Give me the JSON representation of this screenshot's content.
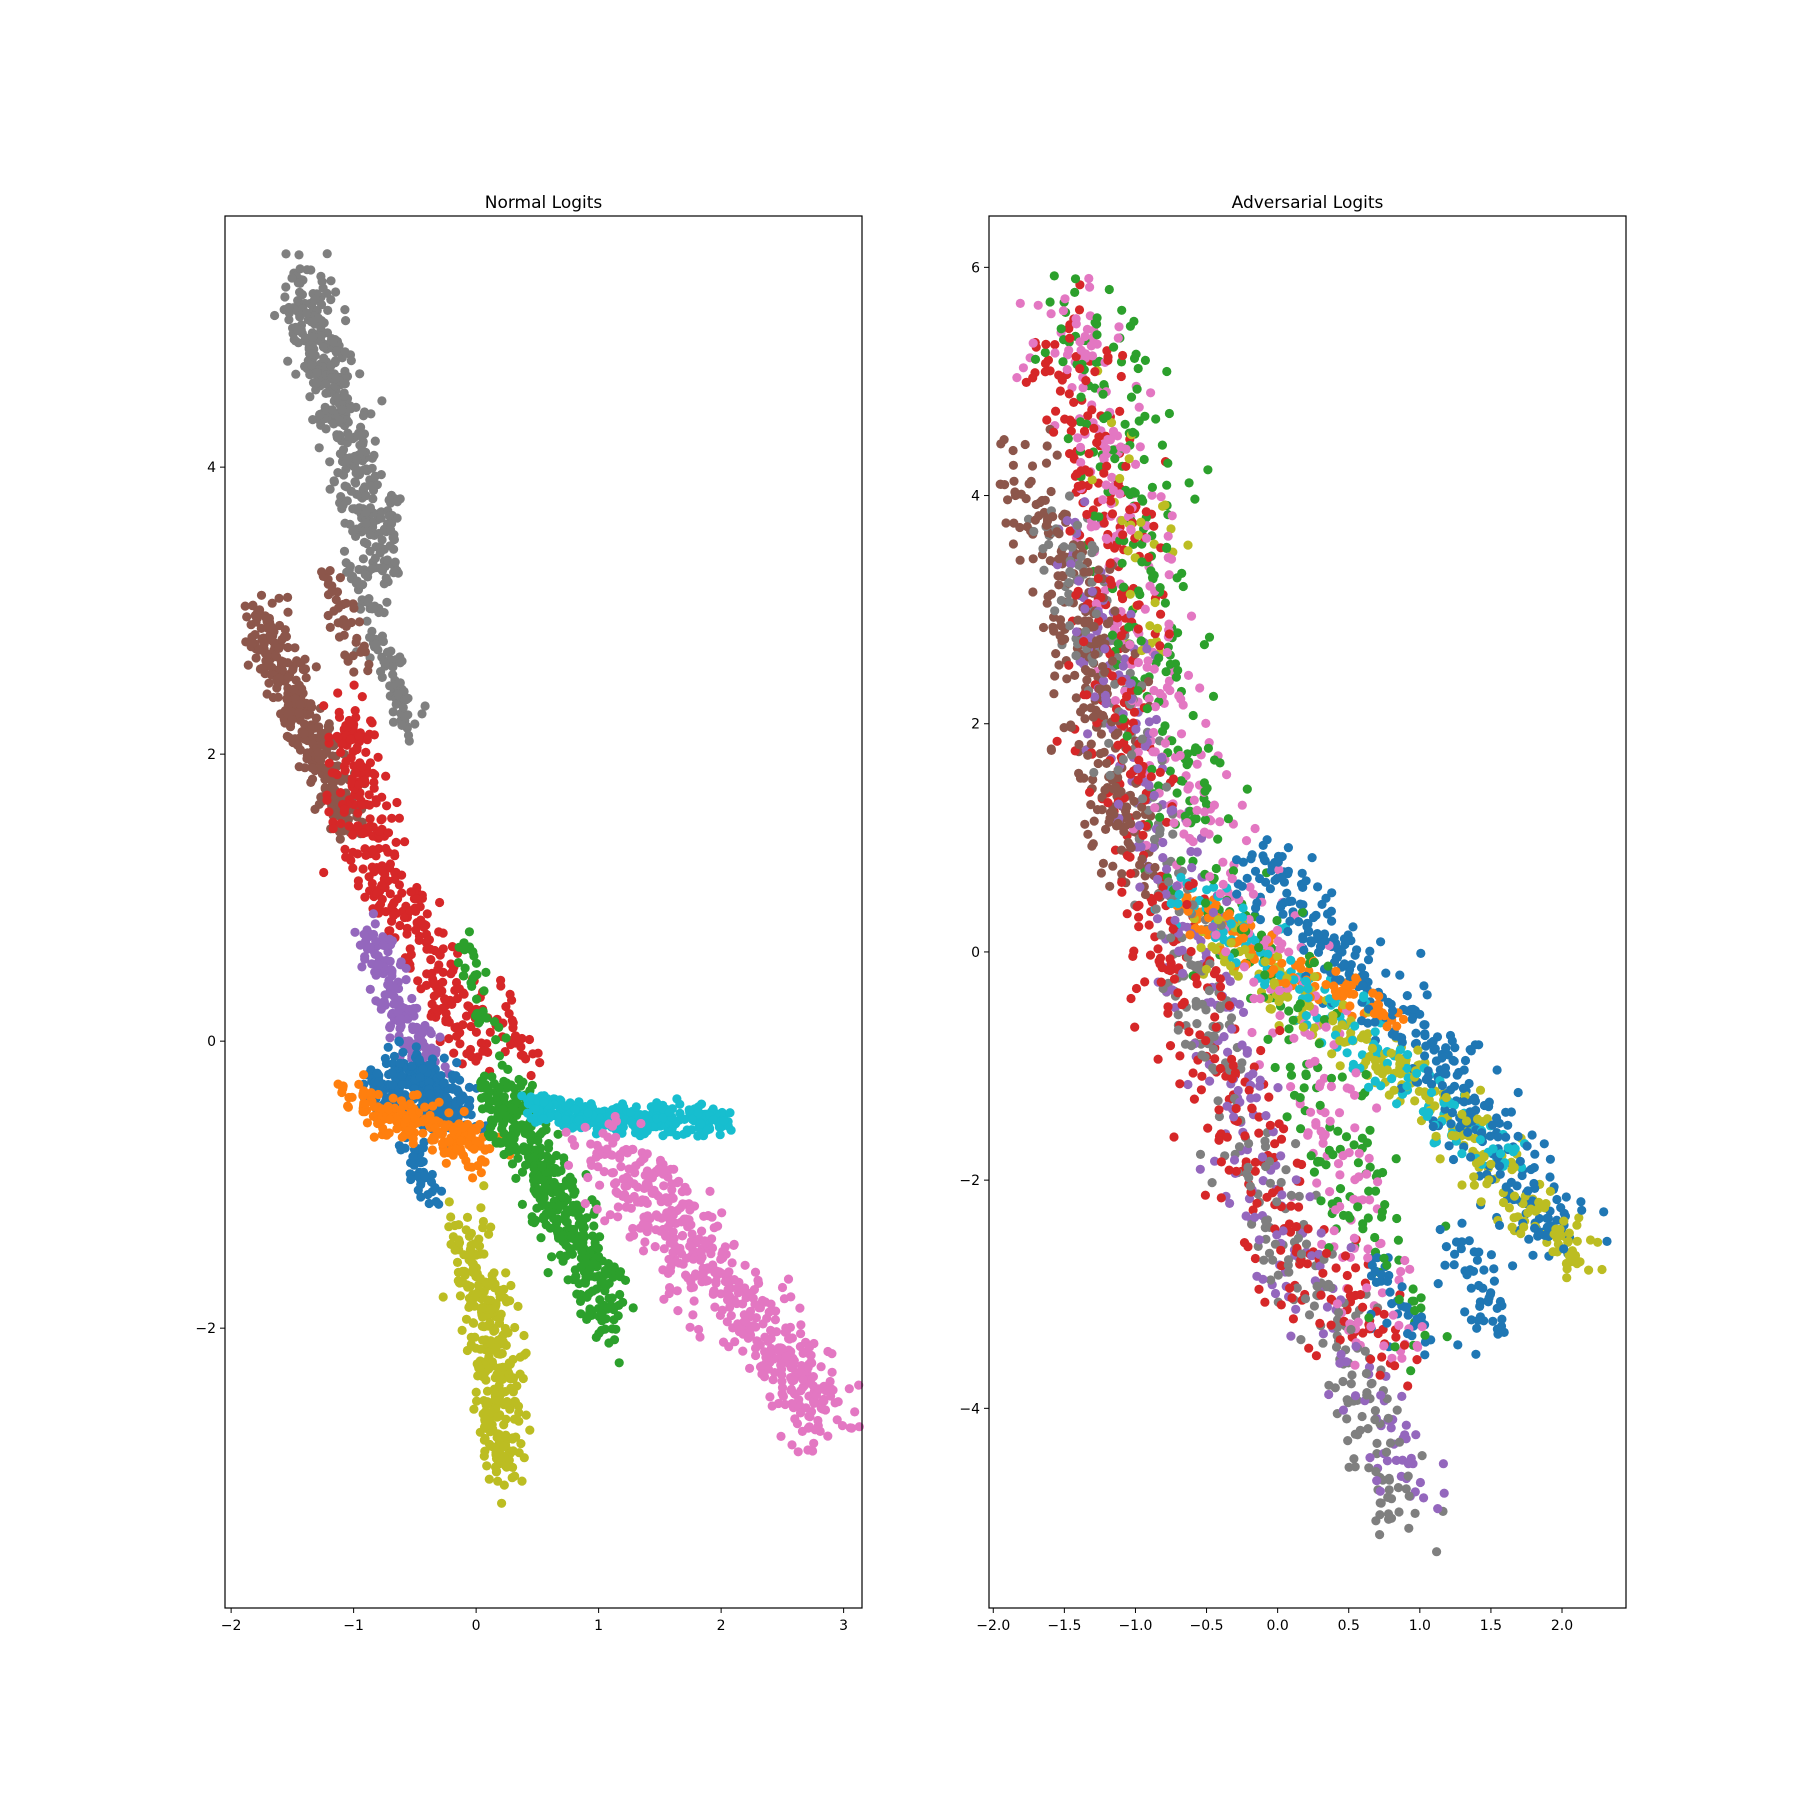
{
  "chart_data": [
    {
      "type": "scatter",
      "title": "Normal Logits",
      "xlabel": "",
      "ylabel": "",
      "xlim": [
        -2.05,
        3.15
      ],
      "ylim": [
        -3.95,
        5.75
      ],
      "xticks": [
        -2,
        -1,
        0,
        1,
        2,
        3
      ],
      "xtick_labels": [
        "−2",
        "−1",
        "0",
        "1",
        "2",
        "3"
      ],
      "yticks": [
        -2,
        0,
        2,
        4
      ],
      "ytick_labels": [
        "−2",
        "0",
        "2",
        "4"
      ],
      "grid": false,
      "legend": "none",
      "series": [
        {
          "color": "#7f7f7f",
          "clusters": [
            {
              "path": [
                [
                  -1.42,
                  5.3
                ],
                [
                  -1.25,
                  4.75
                ],
                [
                  -1.05,
                  4.2
                ],
                [
                  -0.85,
                  3.6
                ],
                [
                  -0.72,
                  3.3
                ]
              ],
              "spread": 0.12,
              "count": 420
            },
            {
              "path": [
                [
                  -1.0,
                  3.3
                ],
                [
                  -0.8,
                  2.8
                ],
                [
                  -0.6,
                  2.4
                ],
                [
                  -0.55,
                  2.1
                ]
              ],
              "spread": 0.07,
              "count": 90
            }
          ]
        },
        {
          "color": "#8c564b",
          "clusters": [
            {
              "path": [
                [
                  -1.75,
                  3.0
                ],
                [
                  -1.62,
                  2.6
                ],
                [
                  -1.4,
                  2.25
                ],
                [
                  -1.2,
                  1.8
                ],
                [
                  -1.0,
                  1.45
                ]
              ],
              "spread": 0.1,
              "count": 330
            },
            {
              "path": [
                [
                  -1.25,
                  3.3
                ],
                [
                  -1.05,
                  2.9
                ],
                [
                  -0.95,
                  2.6
                ]
              ],
              "spread": 0.06,
              "count": 40
            }
          ]
        },
        {
          "color": "#d62728",
          "clusters": [
            {
              "path": [
                [
                  -1.05,
                  2.3
                ],
                [
                  -0.95,
                  1.6
                ],
                [
                  -0.75,
                  1.1
                ],
                [
                  -0.5,
                  0.75
                ],
                [
                  -0.25,
                  0.35
                ],
                [
                  0.05,
                  0.0
                ]
              ],
              "spread": 0.13,
              "count": 360
            },
            {
              "path": [
                [
                  0.1,
                  0.4
                ],
                [
                  0.3,
                  0.0
                ],
                [
                  0.5,
                  -0.2
                ]
              ],
              "spread": 0.08,
              "count": 30
            }
          ]
        },
        {
          "color": "#9467bd",
          "clusters": [
            {
              "path": [
                [
                  -0.85,
                  0.8
                ],
                [
                  -0.7,
                  0.35
                ],
                [
                  -0.5,
                  0.0
                ],
                [
                  -0.3,
                  -0.2
                ]
              ],
              "spread": 0.08,
              "count": 170
            }
          ]
        },
        {
          "color": "#1f77b4",
          "clusters": [
            {
              "path": [
                [
                  -0.8,
                  -0.35
                ],
                [
                  -0.55,
                  -0.25
                ],
                [
                  -0.3,
                  -0.4
                ],
                [
                  -0.1,
                  -0.5
                ]
              ],
              "spread": 0.1,
              "count": 300
            },
            {
              "path": [
                [
                  -0.55,
                  -0.7
                ],
                [
                  -0.45,
                  -0.95
                ],
                [
                  -0.3,
                  -1.1
                ]
              ],
              "spread": 0.05,
              "count": 40
            }
          ]
        },
        {
          "color": "#ff7f0e",
          "clusters": [
            {
              "path": [
                [
                  -1.0,
                  -0.42
                ],
                [
                  -0.7,
                  -0.5
                ],
                [
                  -0.4,
                  -0.6
                ],
                [
                  -0.1,
                  -0.7
                ],
                [
                  0.1,
                  -0.75
                ]
              ],
              "spread": 0.08,
              "count": 190
            }
          ]
        },
        {
          "color": "#2ca02c",
          "clusters": [
            {
              "path": [
                [
                  0.15,
                  -0.3
                ],
                [
                  0.35,
                  -0.65
                ],
                [
                  0.6,
                  -1.05
                ],
                [
                  0.85,
                  -1.4
                ],
                [
                  1.0,
                  -1.75
                ],
                [
                  1.1,
                  -1.95
                ]
              ],
              "spread": 0.12,
              "count": 430
            },
            {
              "path": [
                [
                  -0.1,
                  0.7
                ],
                [
                  0.0,
                  0.3
                ],
                [
                  0.15,
                  0.0
                ]
              ],
              "spread": 0.06,
              "count": 35
            }
          ]
        },
        {
          "color": "#17becf",
          "clusters": [
            {
              "path": [
                [
                  0.4,
                  -0.45
                ],
                [
                  0.8,
                  -0.5
                ],
                [
                  1.2,
                  -0.55
                ],
                [
                  1.6,
                  -0.55
                ],
                [
                  2.05,
                  -0.57
                ]
              ],
              "spread": 0.05,
              "count": 320
            }
          ]
        },
        {
          "color": "#e377c2",
          "clusters": [
            {
              "path": [
                [
                  1.0,
                  -0.75
                ],
                [
                  1.4,
                  -1.05
                ],
                [
                  1.8,
                  -1.5
                ],
                [
                  2.2,
                  -1.9
                ],
                [
                  2.6,
                  -2.3
                ],
                [
                  2.88,
                  -2.6
                ]
              ],
              "spread": 0.16,
              "count": 520
            }
          ]
        },
        {
          "color": "#bcbd22",
          "clusters": [
            {
              "path": [
                [
                  -0.1,
                  -1.35
                ],
                [
                  0.05,
                  -1.75
                ],
                [
                  0.15,
                  -2.2
                ],
                [
                  0.2,
                  -2.6
                ],
                [
                  0.25,
                  -3.0
                ]
              ],
              "spread": 0.12,
              "count": 330
            }
          ]
        }
      ]
    },
    {
      "type": "scatter",
      "title": "Adversarial Logits",
      "xlabel": "",
      "ylabel": "",
      "xlim": [
        -2.03,
        2.45
      ],
      "ylim": [
        -5.75,
        6.45
      ],
      "xticks": [
        -2.0,
        -1.5,
        -1.0,
        -0.5,
        0.0,
        0.5,
        1.0,
        1.5,
        2.0
      ],
      "xtick_labels": [
        "−2.0",
        "−1.5",
        "−1.0",
        "−0.5",
        "0.0",
        "0.5",
        "1.0",
        "1.5",
        "2.0"
      ],
      "yticks": [
        -4,
        -2,
        0,
        2,
        4,
        6
      ],
      "ytick_labels": [
        "−4",
        "−2",
        "0",
        "2",
        "4",
        "6"
      ],
      "grid": false,
      "legend": "none",
      "series": [
        {
          "color": "#e377c2",
          "clusters": [
            {
              "path": [
                [
                  -1.45,
                  5.6
                ],
                [
                  -1.3,
                  4.9
                ],
                [
                  -1.15,
                  4.2
                ],
                [
                  -1.0,
                  3.2
                ],
                [
                  -0.9,
                  2.2
                ],
                [
                  -0.6,
                  1.2
                ],
                [
                  -0.2,
                  0.3
                ],
                [
                  0.2,
                  -0.8
                ],
                [
                  0.5,
                  -2.2
                ],
                [
                  0.8,
                  -3.5
                ]
              ],
              "spread": 0.2,
              "count": 380
            }
          ]
        },
        {
          "color": "#2ca02c",
          "clusters": [
            {
              "path": [
                [
                  -1.45,
                  5.7
                ],
                [
                  -1.05,
                  4.6
                ],
                [
                  -0.9,
                  3.5
                ],
                [
                  -0.9,
                  2.4
                ],
                [
                  -0.6,
                  1.3
                ],
                [
                  -0.2,
                  0.2
                ],
                [
                  0.2,
                  -0.8
                ],
                [
                  0.6,
                  -2.2
                ],
                [
                  0.9,
                  -3.4
                ]
              ],
              "spread": 0.22,
              "count": 340
            }
          ]
        },
        {
          "color": "#d62728",
          "clusters": [
            {
              "path": [
                [
                  -1.5,
                  5.5
                ],
                [
                  -1.2,
                  4.2
                ],
                [
                  -1.15,
                  2.8
                ],
                [
                  -1.1,
                  1.6
                ],
                [
                  -0.85,
                  0.5
                ],
                [
                  -0.55,
                  -0.6
                ],
                [
                  -0.25,
                  -1.6
                ],
                [
                  0.1,
                  -2.6
                ],
                [
                  0.5,
                  -3.2
                ],
                [
                  0.8,
                  -3.6
                ]
              ],
              "spread": 0.2,
              "count": 460
            }
          ]
        },
        {
          "color": "#8c564b",
          "clusters": [
            {
              "path": [
                [
                  -1.75,
                  4.3
                ],
                [
                  -1.5,
                  3.5
                ],
                [
                  -1.3,
                  2.6
                ],
                [
                  -1.2,
                  1.5
                ],
                [
                  -1.0,
                  0.6
                ]
              ],
              "spread": 0.16,
              "count": 280
            }
          ]
        },
        {
          "color": "#7f7f7f",
          "clusters": [
            {
              "path": [
                [
                  -1.6,
                  3.8
                ],
                [
                  -1.3,
                  2.8
                ],
                [
                  -0.4,
                  -1.0
                ],
                [
                  -0.1,
                  -2.1
                ],
                [
                  0.2,
                  -2.8
                ],
                [
                  0.5,
                  -3.5
                ],
                [
                  0.7,
                  -4.2
                ],
                [
                  0.85,
                  -5.1
                ]
              ],
              "spread": 0.15,
              "count": 360
            }
          ]
        },
        {
          "color": "#9467bd",
          "clusters": [
            {
              "path": [
                [
                  -1.45,
                  3.9
                ],
                [
                  -1.2,
                  2.5
                ],
                [
                  -0.8,
                  1.0
                ],
                [
                  -0.2,
                  -1.6
                ],
                [
                  0.1,
                  -2.6
                ],
                [
                  0.5,
                  -3.5
                ],
                [
                  0.9,
                  -4.4
                ],
                [
                  0.95,
                  -4.8
                ]
              ],
              "spread": 0.17,
              "count": 300
            }
          ]
        },
        {
          "color": "#1f77b4",
          "clusters": [
            {
              "path": [
                [
                  -0.2,
                  0.8
                ],
                [
                  0.3,
                  0.2
                ],
                [
                  0.7,
                  -0.35
                ],
                [
                  1.1,
                  -0.9
                ],
                [
                  1.4,
                  -1.5
                ],
                [
                  1.75,
                  -2.1
                ],
                [
                  2.1,
                  -2.6
                ]
              ],
              "spread": 0.15,
              "count": 360
            },
            {
              "path": [
                [
                  1.2,
                  -2.4
                ],
                [
                  1.4,
                  -2.8
                ],
                [
                  1.5,
                  -3.3
                ]
              ],
              "spread": 0.1,
              "count": 50
            },
            {
              "path": [
                [
                  0.7,
                  -2.7
                ],
                [
                  0.9,
                  -3.2
                ],
                [
                  1.1,
                  -3.4
                ]
              ],
              "spread": 0.1,
              "count": 40
            }
          ]
        },
        {
          "color": "#ff7f0e",
          "clusters": [
            {
              "path": [
                [
                  -0.6,
                  0.4
                ],
                [
                  -0.2,
                  0.0
                ],
                [
                  0.2,
                  -0.2
                ],
                [
                  0.5,
                  -0.4
                ],
                [
                  0.8,
                  -0.6
                ]
              ],
              "spread": 0.1,
              "count": 130
            }
          ]
        },
        {
          "color": "#bcbd22",
          "clusters": [
            {
              "path": [
                [
                  -0.5,
                  0.2
                ],
                [
                  0.0,
                  -0.3
                ],
                [
                  0.5,
                  -0.7
                ],
                [
                  1.0,
                  -1.2
                ],
                [
                  1.4,
                  -1.7
                ],
                [
                  1.7,
                  -2.2
                ],
                [
                  2.0,
                  -2.5
                ],
                [
                  2.2,
                  -2.75
                ]
              ],
              "spread": 0.12,
              "count": 260
            },
            {
              "path": [
                [
                  -1.2,
                  4.8
                ],
                [
                  -1.0,
                  3.8
                ],
                [
                  -0.9,
                  2.5
                ]
              ],
              "spread": 0.15,
              "count": 30
            }
          ]
        },
        {
          "color": "#17becf",
          "clusters": [
            {
              "path": [
                [
                  -0.8,
                  0.6
                ],
                [
                  -0.3,
                  0.2
                ],
                [
                  0.2,
                  -0.4
                ],
                [
                  0.7,
                  -0.9
                ],
                [
                  1.2,
                  -1.4
                ],
                [
                  1.6,
                  -1.9
                ]
              ],
              "spread": 0.12,
              "count": 170
            }
          ]
        }
      ]
    }
  ]
}
